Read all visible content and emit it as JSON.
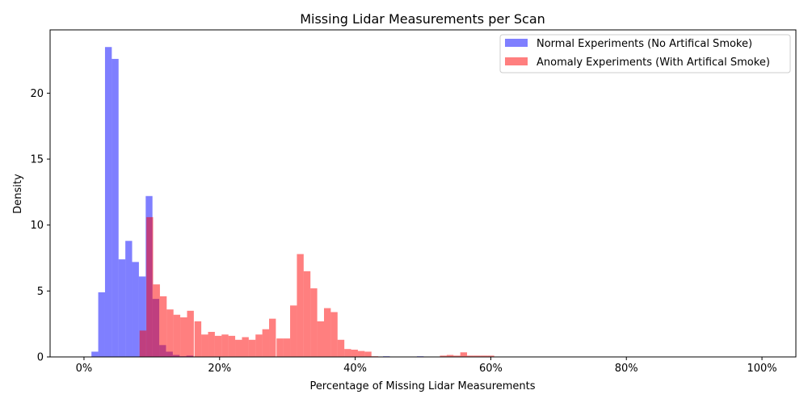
{
  "chart_data": {
    "type": "histogram",
    "title": "Missing Lidar Measurements per Scan",
    "xlabel": "Percentage of Missing Lidar Measurements",
    "ylabel": "Density",
    "xlim": [
      -5,
      105
    ],
    "ylim": [
      0,
      24.8
    ],
    "x_ticks": [
      0,
      20,
      40,
      60,
      80,
      100
    ],
    "x_tick_labels": [
      "0%",
      "20%",
      "40%",
      "60%",
      "80%",
      "100%"
    ],
    "y_ticks": [
      0,
      5,
      10,
      15,
      20
    ],
    "y_tick_labels": [
      "0",
      "5",
      "10",
      "15",
      "20"
    ],
    "grid": false,
    "legend_position": "top-right",
    "bin_width": 1.0,
    "series": [
      {
        "name": "Normal Experiments (No Artifical Smoke)",
        "color": "#0000ff",
        "alpha": 0.5,
        "bin_starts": [
          1.1,
          2.1,
          3.1,
          4.1,
          5.1,
          6.1,
          7.1,
          8.1,
          9.1,
          10.1,
          11.1,
          12.1,
          13.1,
          14.1,
          15.1,
          44.1,
          49.1
        ],
        "values": [
          0.4,
          4.9,
          23.5,
          22.6,
          7.4,
          8.8,
          7.2,
          6.1,
          12.2,
          4.4,
          0.9,
          0.4,
          0.15,
          0.05,
          0.1,
          0.05,
          0.05
        ]
      },
      {
        "name": "Anomaly Experiments (With Artifical Smoke)",
        "color": "#ff0000",
        "alpha": 0.5,
        "bin_starts": [
          8.2,
          9.2,
          10.2,
          11.2,
          12.2,
          13.2,
          14.2,
          15.2,
          16.3,
          17.3,
          18.3,
          19.3,
          20.3,
          21.3,
          22.3,
          23.3,
          24.3,
          25.3,
          26.3,
          27.3,
          28.4,
          29.4,
          30.4,
          31.4,
          32.4,
          33.4,
          34.4,
          35.4,
          36.4,
          37.4,
          38.4,
          39.4,
          40.4,
          41.4,
          42.4,
          52.5,
          53.5,
          54.5,
          55.5,
          56.5,
          57.5,
          58.5,
          59.5
        ],
        "values": [
          2.0,
          10.6,
          5.5,
          4.6,
          3.6,
          3.2,
          3.0,
          3.5,
          2.7,
          1.7,
          1.9,
          1.6,
          1.7,
          1.6,
          1.3,
          1.5,
          1.3,
          1.7,
          2.1,
          2.9,
          1.4,
          1.4,
          3.9,
          7.8,
          6.5,
          5.2,
          2.7,
          3.7,
          3.4,
          1.3,
          0.6,
          0.55,
          0.45,
          0.4,
          0.05,
          0.1,
          0.15,
          0.1,
          0.35,
          0.1,
          0.1,
          0.1,
          0.1
        ]
      }
    ]
  }
}
